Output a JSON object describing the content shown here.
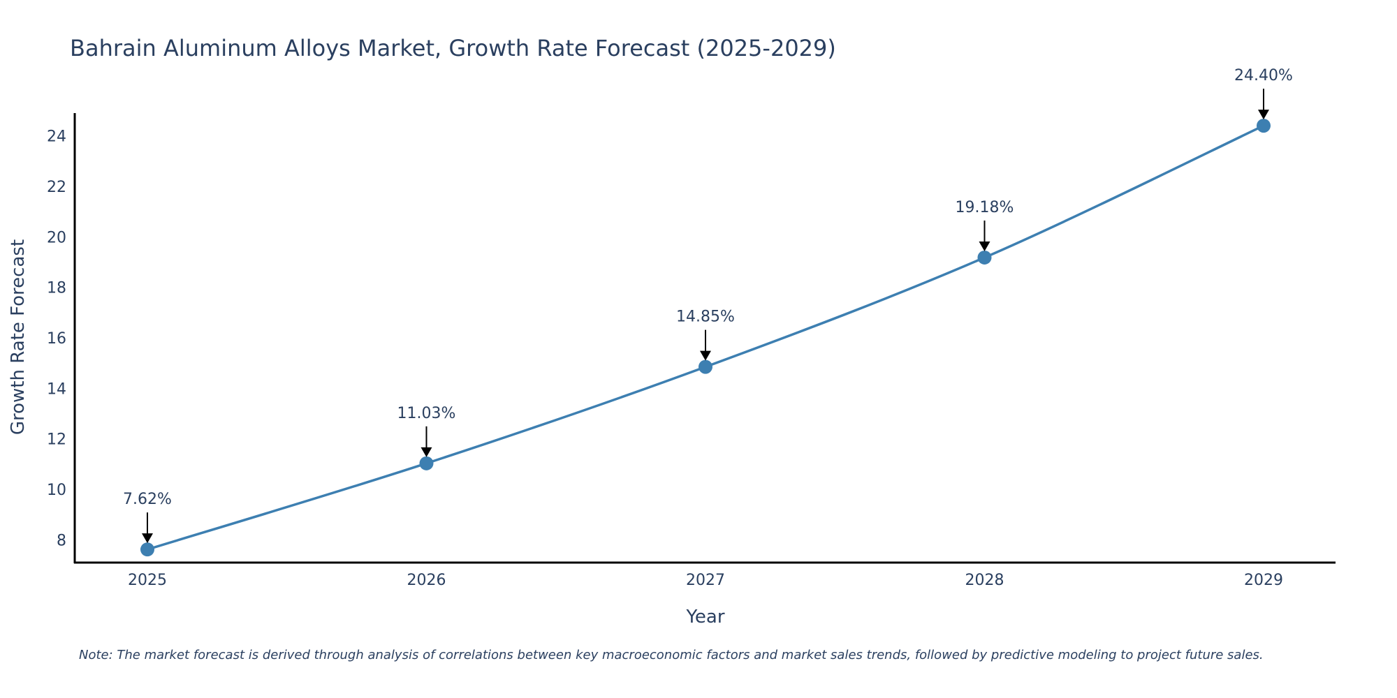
{
  "chart_data": {
    "type": "line",
    "title": "Bahrain Aluminum Alloys Market, Growth Rate Forecast (2025-2029)",
    "xlabel": "Year",
    "ylabel": "Growth Rate Forecast",
    "categories": [
      "2025",
      "2026",
      "2027",
      "2028",
      "2029"
    ],
    "series": [
      {
        "name": "Growth Rate Forecast",
        "values": [
          7.62,
          11.03,
          14.85,
          19.18,
          24.4
        ],
        "labels": [
          "7.62%",
          "11.03%",
          "14.85%",
          "19.18%",
          "24.40%"
        ]
      }
    ],
    "yticks": [
      "8",
      "10",
      "12",
      "14",
      "16",
      "18",
      "20",
      "22",
      "24"
    ],
    "ylim": [
      7.1,
      24.9
    ],
    "grid": false,
    "legend": "none",
    "line_color": "#3d7fb1",
    "marker_color": "#3d7fb1",
    "arrow_color": "#000000",
    "note": "Note: The market forecast is derived through analysis of correlations between key macroeconomic factors and market sales trends, followed by predictive modeling to project future sales."
  }
}
